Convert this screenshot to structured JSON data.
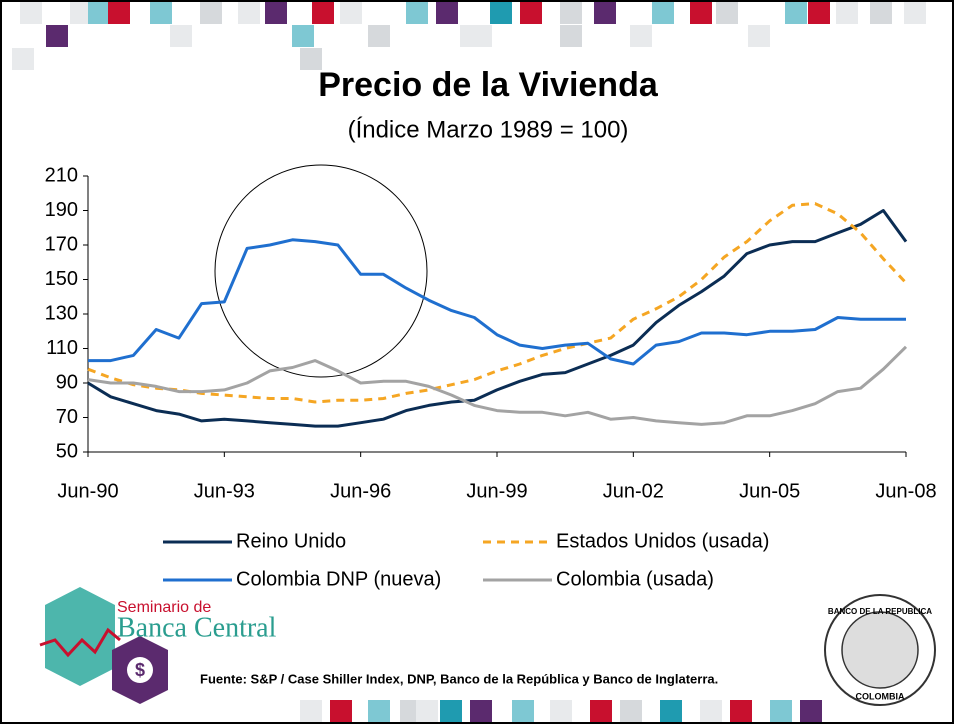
{
  "chart_data": {
    "type": "line",
    "title": "Precio de la Vivienda",
    "subtitle": "(Índice Marzo 1989 = 100)",
    "x": [
      1990.5,
      1991.0,
      1991.5,
      1992.0,
      1992.5,
      1993.0,
      1993.5,
      1994.0,
      1994.5,
      1995.0,
      1995.5,
      1996.0,
      1996.5,
      1997.0,
      1997.5,
      1998.0,
      1998.5,
      1999.0,
      1999.5,
      2000.0,
      2000.5,
      2001.0,
      2001.5,
      2002.0,
      2002.5,
      2003.0,
      2003.5,
      2004.0,
      2004.5,
      2005.0,
      2005.5,
      2006.0,
      2006.5,
      2007.0,
      2007.5,
      2008.0,
      2008.5
    ],
    "xlim": [
      1990.5,
      2008.5
    ],
    "xticks": [
      {
        "value": 1990.5,
        "label": "Jun-90"
      },
      {
        "value": 1993.5,
        "label": "Jun-93"
      },
      {
        "value": 1996.5,
        "label": "Jun-96"
      },
      {
        "value": 1999.5,
        "label": "Jun-99"
      },
      {
        "value": 2002.5,
        "label": "Jun-02"
      },
      {
        "value": 2005.5,
        "label": "Jun-05"
      },
      {
        "value": 2008.5,
        "label": "Jun-08"
      }
    ],
    "ylim": [
      50,
      210
    ],
    "yticks": [
      50,
      70,
      90,
      110,
      130,
      150,
      170,
      190,
      210
    ],
    "grid": false,
    "series": [
      {
        "name": "Reino Unido",
        "color": "#0b2d54",
        "line_style": "solid",
        "values": [
          90,
          82,
          78,
          74,
          72,
          68,
          69,
          68,
          67,
          66,
          65,
          65,
          67,
          69,
          74,
          77,
          79,
          80,
          86,
          91,
          95,
          96,
          101,
          106,
          112,
          125,
          135,
          143,
          152,
          165,
          170,
          172,
          172,
          177,
          182,
          190,
          172
        ]
      },
      {
        "name": "Estados Unidos (usada)",
        "color": "#f5a623",
        "line_style": "dashed",
        "values": [
          98,
          93,
          89,
          87,
          86,
          84,
          83,
          82,
          81,
          81,
          79,
          80,
          80,
          81,
          84,
          86,
          89,
          92,
          97,
          101,
          106,
          110,
          113,
          116,
          127,
          133,
          140,
          150,
          163,
          172,
          184,
          193,
          194,
          188,
          177,
          162,
          148
        ]
      },
      {
        "name": "Colombia DNP (nueva)",
        "color": "#1f6fcf",
        "line_style": "solid",
        "values": [
          103,
          103,
          106,
          121,
          116,
          136,
          137,
          168,
          170,
          173,
          172,
          170,
          153,
          153,
          145,
          138,
          132,
          128,
          118,
          112,
          110,
          112,
          113,
          104,
          101,
          112,
          114,
          119,
          119,
          118,
          120,
          120,
          121,
          128,
          127,
          127,
          127
        ]
      },
      {
        "name": "Colombia (usada)",
        "color": "#a3a3a3",
        "line_style": "solid",
        "values": [
          92,
          90,
          90,
          88,
          85,
          85,
          86,
          90,
          97,
          99,
          103,
          97,
          90,
          91,
          91,
          88,
          83,
          77,
          74,
          73,
          73,
          71,
          73,
          69,
          70,
          68,
          67,
          66,
          67,
          71,
          71,
          74,
          78,
          85,
          87,
          98,
          111
        ]
      }
    ]
  },
  "logo": {
    "line1": "Seminario de",
    "line2": "Banca Central"
  },
  "seal": {
    "top": "BANCO DE LA REPUBLICA",
    "bottom": "COLOMBIA"
  },
  "source": "Fuente: S&P / Case Shiller Index, DNP, Banco de la República y Banco de Inglaterra."
}
